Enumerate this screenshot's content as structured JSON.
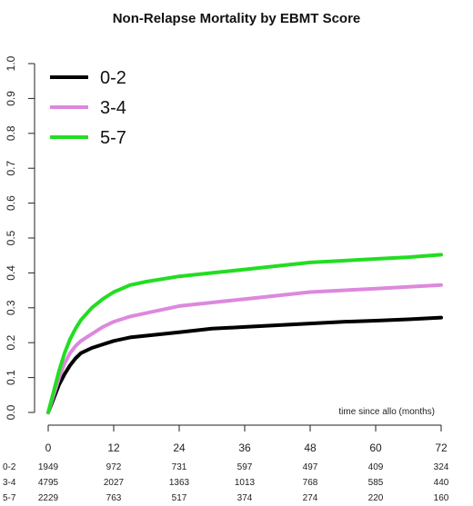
{
  "chart_data": {
    "type": "line",
    "title": "Non-Relapse Mortality by EBMT Score",
    "annotation": "time since allo (months)",
    "xlim": [
      0,
      72
    ],
    "ylim": [
      0,
      1.0
    ],
    "x_ticks": [
      "0",
      "12",
      "24",
      "36",
      "48",
      "60",
      "72"
    ],
    "y_ticks": [
      "0.0",
      "0.1",
      "0.2",
      "0.3",
      "0.4",
      "0.5",
      "0.6",
      "0.7",
      "0.8",
      "0.9",
      "1.0"
    ],
    "legend_position": "top-left",
    "grid": false,
    "x": [
      0,
      1,
      2,
      3,
      4,
      5,
      6,
      8,
      10,
      12,
      15,
      18,
      24,
      30,
      36,
      42,
      48,
      54,
      60,
      66,
      72
    ],
    "series": [
      {
        "name": "0-2",
        "color": "#000000",
        "values": [
          0.0,
          0.04,
          0.08,
          0.11,
          0.135,
          0.155,
          0.17,
          0.185,
          0.195,
          0.205,
          0.215,
          0.22,
          0.23,
          0.24,
          0.245,
          0.25,
          0.255,
          0.26,
          0.263,
          0.267,
          0.272
        ]
      },
      {
        "name": "3-4",
        "color": "#dd88dd",
        "values": [
          0.0,
          0.05,
          0.1,
          0.14,
          0.17,
          0.19,
          0.205,
          0.225,
          0.245,
          0.26,
          0.275,
          0.285,
          0.305,
          0.315,
          0.325,
          0.335,
          0.345,
          0.35,
          0.355,
          0.36,
          0.365
        ]
      },
      {
        "name": "5-7",
        "color": "#22dd22",
        "values": [
          0.0,
          0.06,
          0.12,
          0.17,
          0.21,
          0.24,
          0.265,
          0.3,
          0.325,
          0.345,
          0.365,
          0.375,
          0.39,
          0.4,
          0.41,
          0.42,
          0.43,
          0.435,
          0.44,
          0.445,
          0.452
        ]
      }
    ],
    "risk_table": {
      "rows": [
        {
          "label": "0-2",
          "values": [
            "1949",
            "972",
            "731",
            "597",
            "497",
            "409",
            "324"
          ]
        },
        {
          "label": "3-4",
          "values": [
            "4795",
            "2027",
            "1363",
            "1013",
            "768",
            "585",
            "440"
          ]
        },
        {
          "label": "5-7",
          "values": [
            "2229",
            "763",
            "517",
            "374",
            "274",
            "220",
            "160"
          ]
        }
      ]
    }
  }
}
